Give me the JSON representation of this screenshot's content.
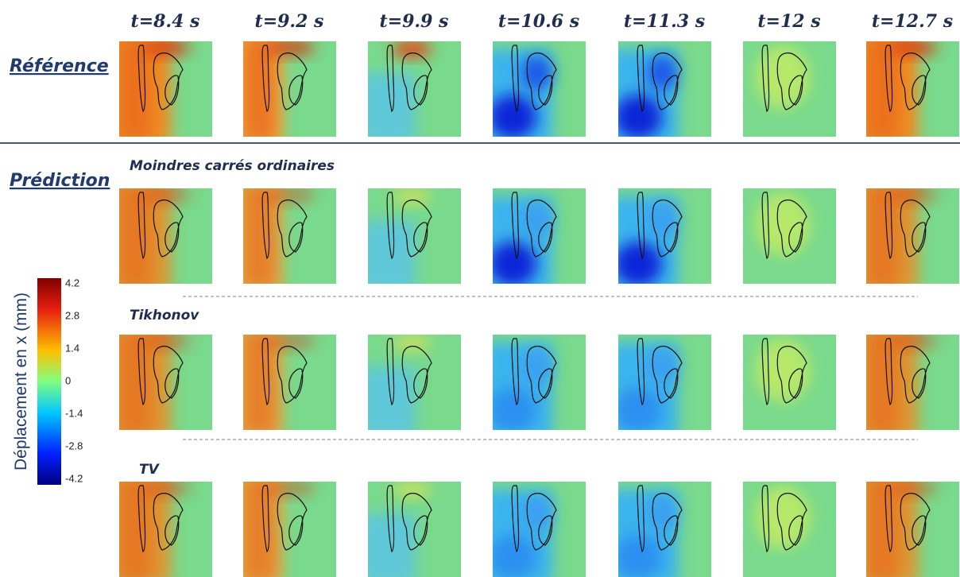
{
  "columns": [
    "t=8.4 s",
    "t=9.2 s",
    "t=9.9 s",
    "t=10.6 s",
    "t=11.3 s",
    "t=12 s",
    "t=12.7 s"
  ],
  "sections": [
    {
      "label": "Référence"
    },
    {
      "label": "Prédiction",
      "methods": [
        "Moindres carrés ordinaires",
        "Tikhonov",
        "TV"
      ]
    }
  ],
  "colorbar": {
    "label": "Déplacement en x (mm)",
    "ticks": [
      4.2,
      2.8,
      1.4,
      0,
      -1.4,
      -2.8,
      -4.2
    ]
  }
}
